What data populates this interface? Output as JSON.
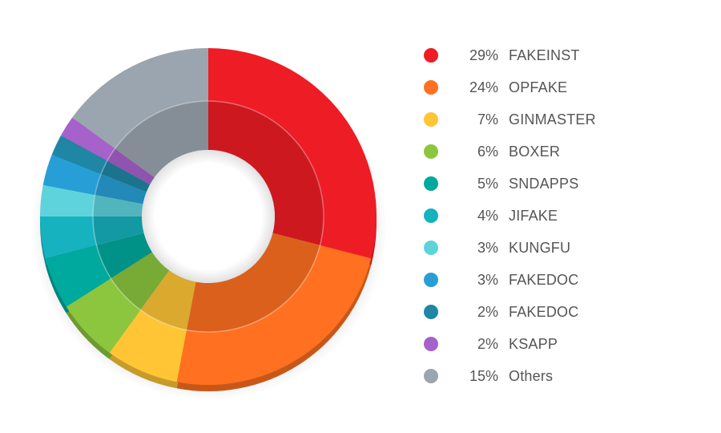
{
  "chart_data": {
    "type": "pie",
    "variant": "donut",
    "title": "",
    "legend_position": "right",
    "slices": [
      {
        "name": "FAKEINST",
        "value": 29,
        "label": "29%",
        "color": "#ee1c25"
      },
      {
        "name": "OPFAKE",
        "value": 24,
        "label": "24%",
        "color": "#ff7020"
      },
      {
        "name": "GINMASTER",
        "value": 7,
        "label": "7%",
        "color": "#ffc535"
      },
      {
        "name": "BOXER",
        "value": 6,
        "label": "6%",
        "color": "#8cc63f"
      },
      {
        "name": "SNDAPPS",
        "value": 5,
        "label": "5%",
        "color": "#00a99d"
      },
      {
        "name": "JIFAKE",
        "value": 4,
        "label": "4%",
        "color": "#16b2bf"
      },
      {
        "name": "KUNGFU",
        "value": 3,
        "label": "3%",
        "color": "#5fd3dc"
      },
      {
        "name": "FAKEDOC",
        "value": 3,
        "label": "3%",
        "color": "#279fd6"
      },
      {
        "name": "FAKEDOC",
        "value": 2,
        "label": "2%",
        "color": "#1f86a5"
      },
      {
        "name": "KSAPP",
        "value": 2,
        "label": "2%",
        "color": "#a761cb"
      },
      {
        "name": "Others",
        "value": 15,
        "label": "15%",
        "color": "#9ba5af"
      }
    ]
  }
}
